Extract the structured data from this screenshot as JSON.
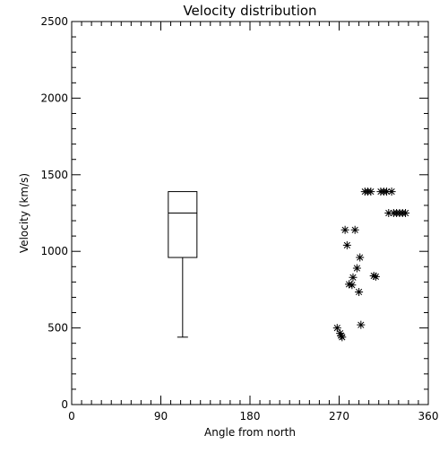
{
  "chart_data": {
    "type": "scatter",
    "title": "Velocity distribution",
    "xlabel": "Angle from north",
    "ylabel": "Velocity (km/s)",
    "xlim": [
      0,
      360
    ],
    "ylim": [
      0,
      2500
    ],
    "xticks": [
      0,
      90,
      180,
      270,
      360
    ],
    "xtick_labels": [
      "0",
      "90",
      "180",
      "270",
      "360"
    ],
    "yticks": [
      0,
      500,
      1000,
      1500,
      2000,
      2500
    ],
    "ytick_labels": [
      "0",
      "500",
      "1000",
      "1500",
      "2000",
      "2500"
    ],
    "x_minor_step": 10,
    "y_minor_step": 100,
    "grid": false,
    "boxplot": {
      "x": 112,
      "min": 440,
      "q1": 960,
      "median": 1250,
      "q3": 1390
    },
    "points": [
      {
        "x": 268,
        "y": 500
      },
      {
        "x": 271,
        "y": 465
      },
      {
        "x": 272,
        "y": 450
      },
      {
        "x": 273,
        "y": 440
      },
      {
        "x": 276,
        "y": 1140
      },
      {
        "x": 278,
        "y": 1040
      },
      {
        "x": 280,
        "y": 785
      },
      {
        "x": 283,
        "y": 780
      },
      {
        "x": 284,
        "y": 830
      },
      {
        "x": 286,
        "y": 1140
      },
      {
        "x": 288,
        "y": 890
      },
      {
        "x": 290,
        "y": 735
      },
      {
        "x": 291,
        "y": 960
      },
      {
        "x": 292,
        "y": 520
      },
      {
        "x": 296,
        "y": 1390
      },
      {
        "x": 299,
        "y": 1390
      },
      {
        "x": 302,
        "y": 1390
      },
      {
        "x": 305,
        "y": 840
      },
      {
        "x": 307,
        "y": 835
      },
      {
        "x": 312,
        "y": 1390
      },
      {
        "x": 315,
        "y": 1390
      },
      {
        "x": 318,
        "y": 1390
      },
      {
        "x": 320,
        "y": 1250
      },
      {
        "x": 323,
        "y": 1390
      },
      {
        "x": 325,
        "y": 1250
      },
      {
        "x": 328,
        "y": 1250
      },
      {
        "x": 331,
        "y": 1250
      },
      {
        "x": 334,
        "y": 1250
      },
      {
        "x": 337,
        "y": 1250
      }
    ]
  }
}
